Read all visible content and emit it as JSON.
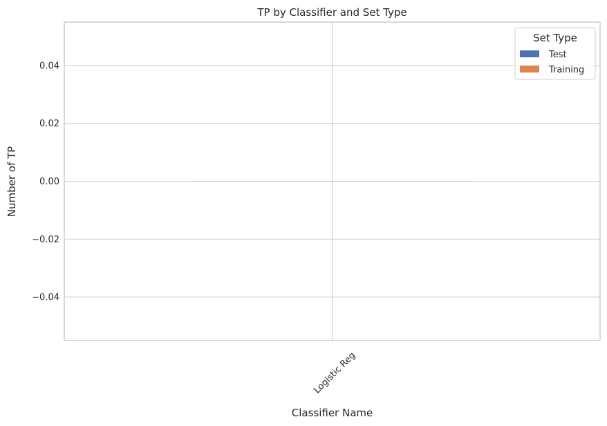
{
  "chart_data": {
    "type": "bar",
    "title": "TP by Classifier and Set Type",
    "xlabel": "Classifier Name",
    "ylabel": "Number of TP",
    "categories": [
      "Logistic Reg"
    ],
    "series": [
      {
        "name": "Test",
        "values": [
          0
        ],
        "color": "#4c72b0"
      },
      {
        "name": "Training",
        "values": [
          0
        ],
        "color": "#dd8452"
      }
    ],
    "ylim": [
      -0.055,
      0.055
    ],
    "yticks": [
      -0.04,
      -0.02,
      0.0,
      0.02,
      0.04
    ],
    "ytick_labels": [
      "−0.04",
      "−0.02",
      "0.00",
      "0.02",
      "0.04"
    ],
    "xtick_rotation": -45,
    "grid": true,
    "legend": {
      "title": "Set Type",
      "placement": "top-right"
    }
  }
}
